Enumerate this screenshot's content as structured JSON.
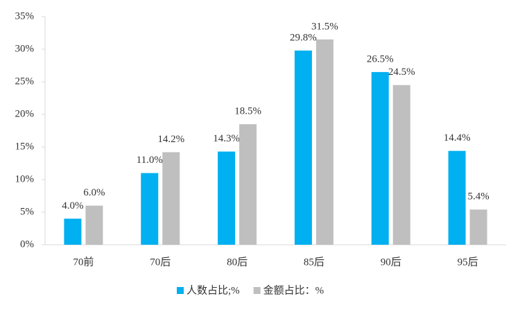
{
  "chart_data": {
    "type": "bar",
    "categories": [
      "70前",
      "70后",
      "80后",
      "85后",
      "90后",
      "95后"
    ],
    "series": [
      {
        "name": "人数占比;%",
        "color": "#00b0f0",
        "values": [
          4.0,
          11.0,
          14.3,
          29.8,
          26.5,
          14.4
        ],
        "value_labels": [
          "4.0%",
          "11.0%",
          "14.3%",
          "29.8%",
          "26.5%",
          "14.4%"
        ]
      },
      {
        "name": "金额占比：%",
        "color": "#bfbfbf",
        "values": [
          6.0,
          14.2,
          18.5,
          31.5,
          24.5,
          5.4
        ],
        "value_labels": [
          "6.0%",
          "14.2%",
          "18.5%",
          "31.5%",
          "24.5%",
          "5.4%"
        ]
      }
    ],
    "ylim": [
      0,
      35
    ],
    "yticks": [
      {
        "value": 0,
        "label": "0%"
      },
      {
        "value": 5,
        "label": "5%"
      },
      {
        "value": 10,
        "label": "10%"
      },
      {
        "value": 15,
        "label": "15%"
      },
      {
        "value": 20,
        "label": "20%"
      },
      {
        "value": 25,
        "label": "25%"
      },
      {
        "value": 30,
        "label": "30%"
      },
      {
        "value": 35,
        "label": "35%"
      }
    ],
    "grid": false,
    "legend": "bottom"
  }
}
